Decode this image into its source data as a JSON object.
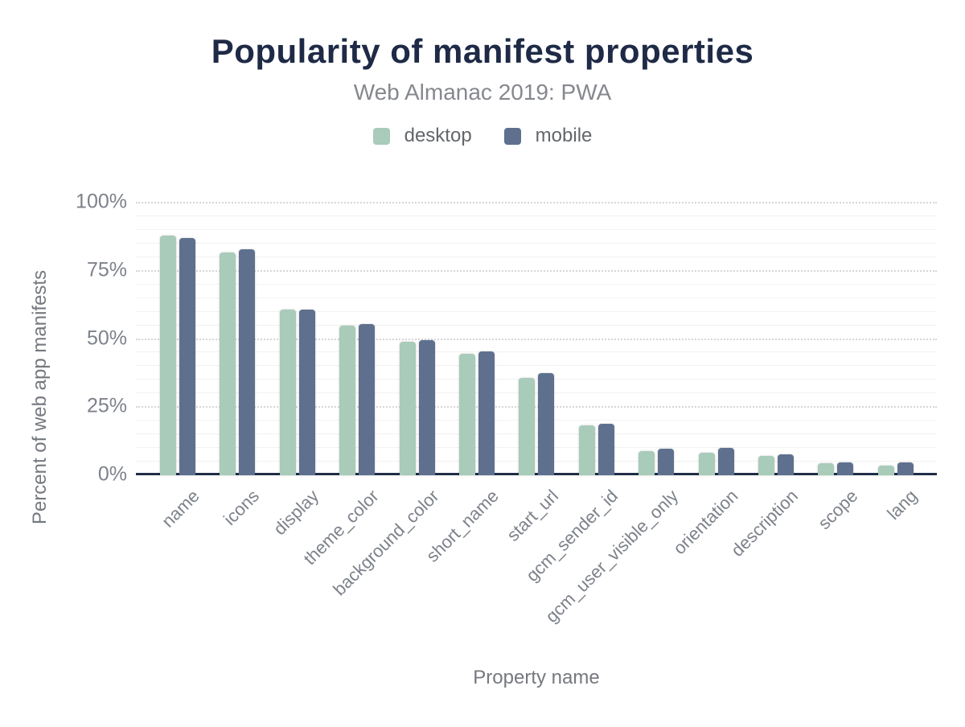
{
  "chart_data": {
    "type": "bar",
    "title": "Popularity of manifest properties",
    "subtitle": "Web Almanac 2019: PWA",
    "xlabel": "Property name",
    "ylabel": "Percent of web app manifests",
    "ylim": [
      0,
      100
    ],
    "yticks": [
      0,
      25,
      50,
      75,
      100
    ],
    "ytick_suffix": "%",
    "minor_grid_step": 5,
    "grid": true,
    "legend_position": "top",
    "categories": [
      "name",
      "icons",
      "display",
      "theme_color",
      "background_color",
      "short_name",
      "start_url",
      "gcm_sender_id",
      "gcm_user_visible_only",
      "orientation",
      "description",
      "scope",
      "lang"
    ],
    "series": [
      {
        "name": "desktop",
        "color": "#a9cbb9",
        "values": [
          88,
          81.7,
          60.8,
          54.8,
          48.9,
          44.5,
          35.8,
          18.3,
          8.8,
          8.4,
          7.1,
          4.5,
          3.4
        ]
      },
      {
        "name": "mobile",
        "color": "#5e708e",
        "values": [
          87,
          82.9,
          60.7,
          55.5,
          49.6,
          45.3,
          37.6,
          19.0,
          9.6,
          10.1,
          7.8,
          4.7,
          4.8
        ]
      }
    ]
  },
  "colors": {
    "background": "#ffffff",
    "title": "#1e2a46",
    "subtitle": "#85888d",
    "legend_text": "#63666b",
    "tick_label": "#7d828a",
    "axis_title": "#75787e",
    "axis_line": "#202d47",
    "grid_major": "#d6d6d6",
    "grid_minor": "#f2f2f2",
    "desktop_bar": "#a9cbb9",
    "mobile_bar": "#5e708e"
  }
}
